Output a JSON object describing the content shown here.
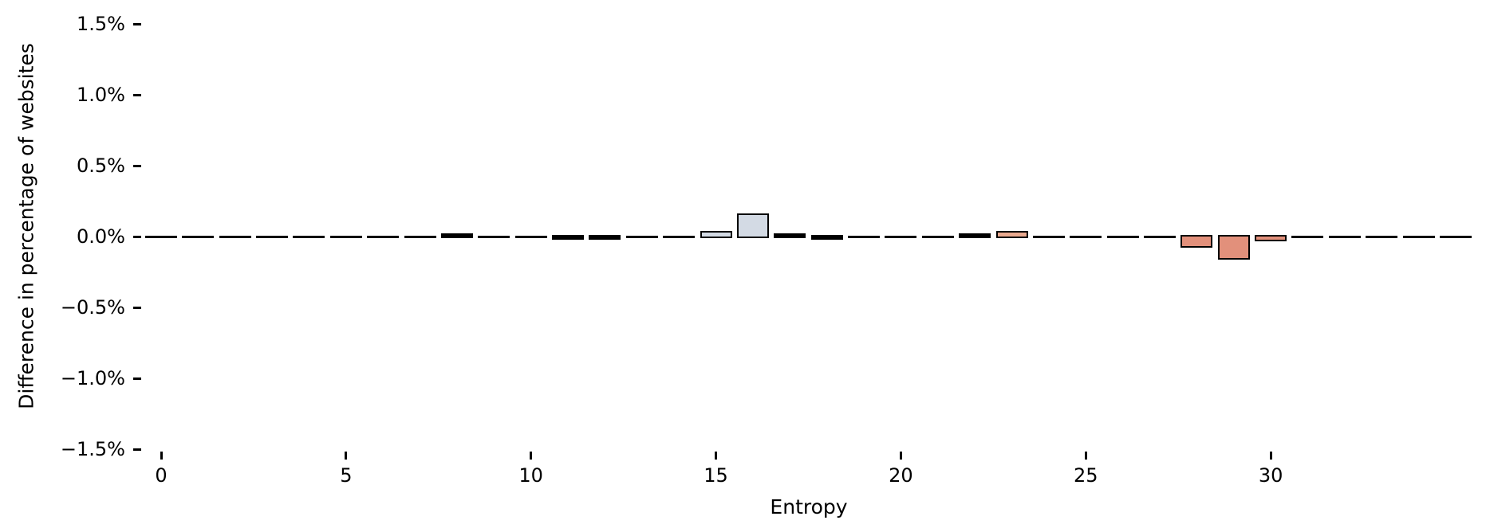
{
  "figure": {
    "background": "#ffffff"
  },
  "chart_data": {
    "type": "bar",
    "title": "",
    "xlabel": "Entropy",
    "ylabel": "Difference in percentage of websites",
    "x": [
      0,
      1,
      2,
      3,
      4,
      5,
      6,
      7,
      8,
      9,
      10,
      11,
      12,
      13,
      14,
      15,
      16,
      17,
      18,
      19,
      20,
      21,
      22,
      23,
      24,
      25,
      26,
      27,
      28,
      29,
      30,
      31,
      32,
      33,
      34,
      35
    ],
    "values": [
      0,
      0,
      0,
      0,
      0,
      0,
      0,
      0,
      0.01,
      0,
      0,
      -0.01,
      -0.01,
      0,
      0,
      0.03,
      0.15,
      0.01,
      -0.01,
      0,
      0,
      0,
      0.01,
      0.03,
      0,
      0,
      0,
      0,
      -0.07,
      -0.15,
      -0.02,
      0,
      0,
      0,
      0,
      0
    ],
    "bar_colors": [
      "#000000",
      "#000000",
      "#000000",
      "#000000",
      "#000000",
      "#000000",
      "#000000",
      "#000000",
      "#000000",
      "#000000",
      "#000000",
      "#000000",
      "#000000",
      "#000000",
      "#000000",
      "#d3dae4",
      "#d3dae4",
      "#000000",
      "#000000",
      "#000000",
      "#000000",
      "#000000",
      "#000000",
      "#e9a98f",
      "#000000",
      "#000000",
      "#000000",
      "#000000",
      "#e2907b",
      "#e2907b",
      "#e2907b",
      "#000000",
      "#000000",
      "#000000",
      "#000000",
      "#000000"
    ],
    "edge_color": "#000000",
    "bar_width_units": 0.8,
    "xlim": [
      -0.9,
      35.6
    ],
    "ylim": [
      -1.67,
      1.67
    ],
    "xticks": [
      0,
      5,
      10,
      15,
      20,
      25,
      30
    ],
    "xtick_labels": [
      "0",
      "5",
      "10",
      "15",
      "20",
      "25",
      "30"
    ],
    "ytick_values": [
      1.5,
      1.0,
      0.5,
      0.0,
      -0.5,
      -1.0,
      -1.5
    ],
    "ytick_labels": [
      "1.5%",
      "1.0%",
      "0.5%",
      "0.0%",
      "−0.5%",
      "−1.0%",
      "−1.5%"
    ],
    "grid": false,
    "legend": null,
    "value_unit": "percent"
  }
}
